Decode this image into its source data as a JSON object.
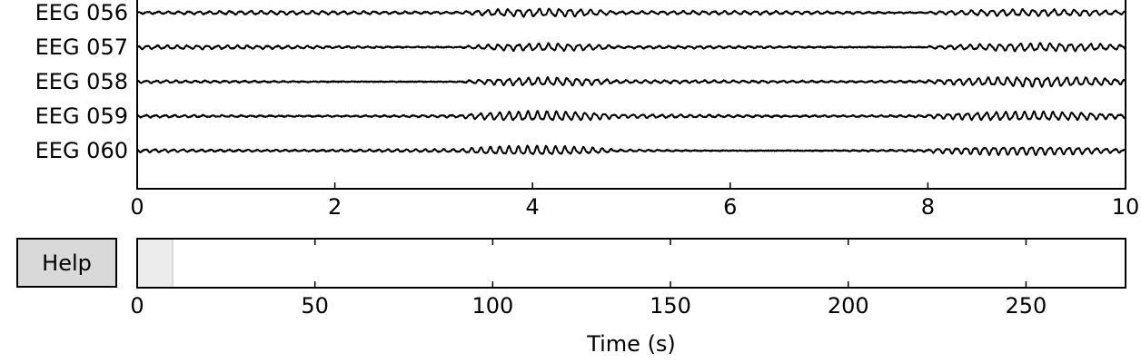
{
  "chart_data": [
    {
      "type": "line",
      "title": "",
      "xlabel": "",
      "ylabel": "",
      "xlim": [
        0,
        10
      ],
      "x_ticks": [
        0,
        2,
        4,
        6,
        8,
        10
      ],
      "x_tick_labels": [
        "0",
        "2",
        "4",
        "6",
        "8",
        "10"
      ],
      "grid": false,
      "channels": [
        "EEG 056",
        "EEG 057",
        "EEG 058",
        "EEG 059",
        "EEG 060"
      ],
      "trace_color": "#000000",
      "high_activity_windows_s": [
        [
          3.3,
          4.8
        ],
        [
          8.0,
          10.0
        ]
      ]
    },
    {
      "type": "bar",
      "title": "",
      "xlabel": "Time (s)",
      "ylabel": "",
      "xlim": [
        0,
        278
      ],
      "x_ticks": [
        0,
        50,
        100,
        150,
        200,
        250
      ],
      "x_tick_labels": [
        "0",
        "50",
        "100",
        "150",
        "200",
        "250"
      ],
      "visible_window": [
        0,
        10
      ],
      "window_color": "#ececec"
    }
  ],
  "controls": {
    "help_label": "Help"
  }
}
